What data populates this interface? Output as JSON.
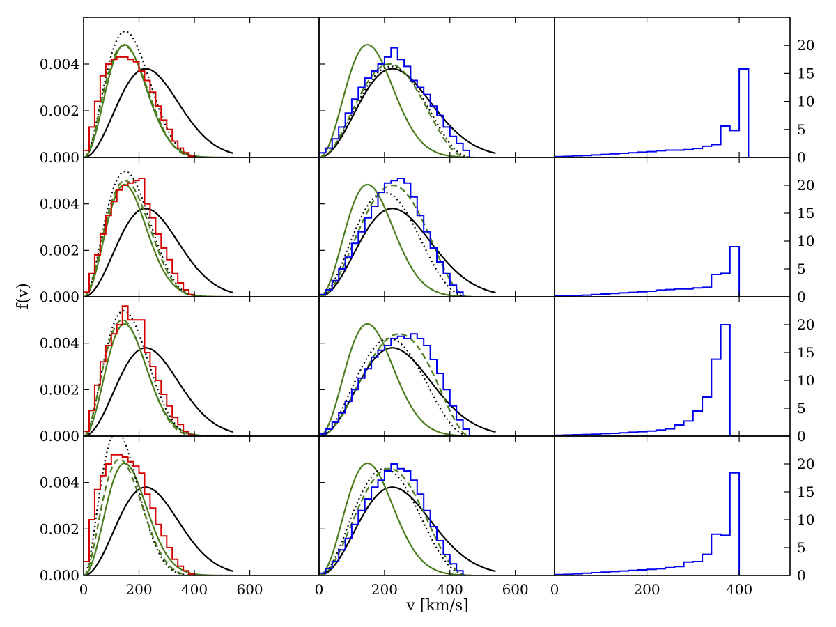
{
  "figure": {
    "xlabel": "v [km/s]",
    "ylabel": "f(v)"
  },
  "colors": {
    "red_hist": "#d40000",
    "blue_hist": "#0000ee",
    "green_model": "#4a7d1e",
    "black_model": "#000000"
  },
  "chart_data": [
    {
      "type": "line",
      "grid": "off",
      "panels": "4 rows x 3 columns, shared axes",
      "columns": [
        {
          "id": "left",
          "xlim": [
            0,
            850
          ],
          "ylim": [
            0,
            0.006
          ],
          "xticks": [
            0,
            200,
            400,
            600
          ],
          "yticks": [
            0.0,
            0.002,
            0.004
          ],
          "ytick_labels": [
            "0.000",
            "0.002",
            "0.004"
          ]
        },
        {
          "id": "middle",
          "xlim": [
            0,
            720
          ],
          "ylim": [
            0,
            0.006
          ],
          "xticks": [
            0,
            200,
            400,
            600
          ]
        },
        {
          "id": "right",
          "xlim": [
            0,
            510
          ],
          "ylim": [
            0,
            25
          ],
          "xticks": [
            0,
            200,
            400
          ],
          "yticks": [
            0,
            5,
            10,
            15,
            20
          ],
          "ytick_labels": [
            "0",
            "5",
            "10",
            "15",
            "20"
          ]
        }
      ],
      "reference_curves": {
        "black_solid_peak_v": 224,
        "green_solid_peak_v": 148,
        "curve_vmax": 540
      },
      "rows": [
        {
          "left": {
            "red_hist": {
              "bin_width": 20,
              "values": [
                0.0003,
                0.0013,
                0.0024,
                0.0035,
                0.004,
                0.0042,
                0.0043,
                0.0043,
                0.0042,
                0.0041,
                0.0037,
                0.0033,
                0.0028,
                0.0022,
                0.0016,
                0.0012,
                0.0007,
                0.0004,
                0.0002,
                5e-05
              ]
            },
            "green_dashed_peak": [
              145,
              0.0048
            ],
            "dotted_peak": [
              150,
              0.0054
            ]
          },
          "middle": {
            "blue_hist": {
              "bin_width": 20,
              "values": [
                0.0002,
                0.0004,
                0.0008,
                0.0013,
                0.0019,
                0.0025,
                0.003,
                0.0034,
                0.0037,
                0.004,
                0.0043,
                0.0047,
                0.0042,
                0.0039,
                0.0033,
                0.003,
                0.0027,
                0.0022,
                0.0018,
                0.0013,
                0.0009,
                0.0006,
                0.0003
              ]
            },
            "green_dashed_peak": [
              215,
              0.004
            ],
            "dotted_peak": [
              220,
              0.0039
            ]
          },
          "right": {
            "blue_hist": {
              "bin_width": 20,
              "values": [
                0.15,
                0.2,
                0.3,
                0.35,
                0.45,
                0.55,
                0.65,
                0.75,
                0.85,
                0.95,
                1.05,
                1.2,
                1.3,
                1.3,
                1.4,
                1.6,
                2.0,
                2.3,
                5.6,
                4.8,
                15.8
              ]
            }
          }
        },
        {
          "left": {
            "red_hist": {
              "bin_width": 20,
              "values": [
                0.0002,
                0.001,
                0.0018,
                0.0027,
                0.0035,
                0.0041,
                0.0046,
                0.0048,
                0.0049,
                0.005,
                0.0051,
                0.004,
                0.0034,
                0.0027,
                0.0021,
                0.0016,
                0.001,
                0.0006,
                0.0003,
                0.0001
              ]
            },
            "green_dashed_peak": [
              150,
              0.005
            ],
            "dotted_peak": [
              150,
              0.0054
            ]
          },
          "middle": {
            "blue_hist": {
              "bin_width": 20,
              "values": [
                0.0001,
                0.0003,
                0.0007,
                0.0012,
                0.0017,
                0.0023,
                0.0028,
                0.0034,
                0.0039,
                0.0045,
                0.0049,
                0.005,
                0.0051,
                0.0049,
                0.0043,
                0.0035,
                0.0028,
                0.0021,
                0.0015,
                0.001,
                0.0005,
                0.0002
              ]
            },
            "green_dashed_peak": [
              225,
              0.0048
            ],
            "dotted_peak": [
              200,
              0.0045
            ]
          },
          "right": {
            "blue_hist": {
              "bin_width": 20,
              "values": [
                0.15,
                0.2,
                0.25,
                0.3,
                0.4,
                0.5,
                0.6,
                0.7,
                0.8,
                0.9,
                1.0,
                1.2,
                1.3,
                1.4,
                1.4,
                1.6,
                1.7,
                4.0,
                4.2,
                9.0
              ]
            }
          }
        },
        {
          "left": {
            "red_hist": {
              "bin_width": 20,
              "values": [
                0.0002,
                0.0011,
                0.0022,
                0.0032,
                0.0039,
                0.0044,
                0.0048,
                0.0056,
                0.005,
                0.005,
                0.005,
                0.0036,
                0.003,
                0.0024,
                0.0018,
                0.0013,
                0.0008,
                0.0005,
                0.0002,
                5e-05
              ]
            },
            "green_dashed_peak": [
              140,
              0.005
            ],
            "dotted_peak": [
              145,
              0.0054
            ]
          },
          "middle": {
            "blue_hist": {
              "bin_width": 20,
              "values": [
                0.0001,
                0.0003,
                0.0006,
                0.001,
                0.0015,
                0.002,
                0.0025,
                0.0029,
                0.0034,
                0.0037,
                0.0039,
                0.0042,
                0.0043,
                0.0042,
                0.0044,
                0.0042,
                0.0039,
                0.0033,
                0.0027,
                0.002,
                0.0013,
                0.0007,
                0.0003
              ]
            },
            "green_dashed_peak": [
              245,
              0.0044
            ],
            "dotted_peak": [
              215,
              0.0042
            ]
          },
          "right": {
            "blue_hist": {
              "bin_width": 20,
              "values": [
                0.15,
                0.2,
                0.25,
                0.3,
                0.35,
                0.45,
                0.5,
                0.6,
                0.7,
                0.8,
                0.9,
                1.1,
                1.3,
                2.0,
                2.7,
                4.5,
                7.0,
                13.8,
                20.0
              ]
            }
          }
        },
        {
          "left": {
            "red_hist": {
              "bin_width": 20,
              "values": [
                0.0006,
                0.0024,
                0.0037,
                0.0043,
                0.0048,
                0.0052,
                0.0052,
                0.0051,
                0.0049,
                0.0047,
                0.0044,
                0.0035,
                0.0029,
                0.0022,
                0.0017,
                0.0012,
                0.0007,
                0.0004,
                0.0002,
                5e-05
              ]
            },
            "green_dashed_peak": [
              130,
              0.005
            ],
            "dotted_peak": [
              120,
              0.0062
            ]
          },
          "middle": {
            "blue_hist": {
              "bin_width": 20,
              "values": [
                0.0001,
                0.0003,
                0.0006,
                0.0011,
                0.0016,
                0.0022,
                0.0028,
                0.0033,
                0.0038,
                0.0041,
                0.0045,
                0.0048,
                0.0046,
                0.0045,
                0.0041,
                0.0035,
                0.0028,
                0.0021,
                0.0015,
                0.0009,
                0.0005,
                0.0002
              ]
            },
            "green_dashed_peak": [
              215,
              0.0046
            ],
            "dotted_peak": [
              200,
              0.0046
            ]
          },
          "right": {
            "blue_hist": {
              "bin_width": 20,
              "values": [
                0.15,
                0.2,
                0.3,
                0.4,
                0.5,
                0.6,
                0.7,
                0.8,
                0.9,
                1.0,
                1.1,
                1.2,
                1.4,
                1.6,
                2.4,
                2.5,
                3.8,
                7.4,
                7.2,
                18.4
              ]
            }
          }
        }
      ]
    }
  ]
}
